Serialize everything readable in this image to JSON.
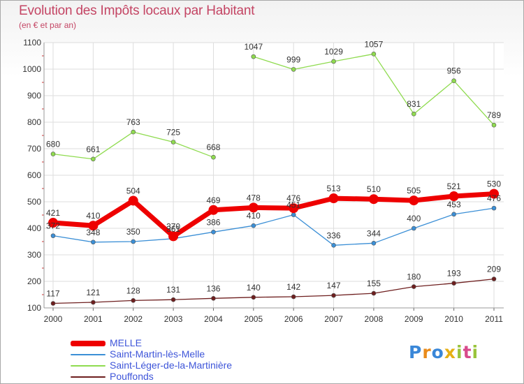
{
  "header": {
    "title": "Evolution des Impôts locaux par Habitant",
    "subtitle": "(en € et par an)"
  },
  "chart_data": {
    "type": "line",
    "x": [
      "2000",
      "2001",
      "2002",
      "2003",
      "2004",
      "2005",
      "2006",
      "2007",
      "2008",
      "2009",
      "2010",
      "2011"
    ],
    "ylim": [
      100,
      1100
    ],
    "yticks": [
      100,
      200,
      300,
      400,
      500,
      600,
      700,
      800,
      900,
      1000,
      1100
    ],
    "grid": true,
    "legend_position": "bottom-left",
    "series": [
      {
        "name": "MELLE",
        "color": "#ee0000",
        "values": [
          421,
          410,
          504,
          370,
          469,
          478,
          476,
          513,
          510,
          505,
          521,
          530
        ]
      },
      {
        "name": "Saint-Martin-lès-Melle",
        "color": "#3b8fd6",
        "values": [
          372,
          348,
          350,
          361,
          386,
          410,
          451,
          336,
          344,
          400,
          453,
          476
        ]
      },
      {
        "name": "Saint-Léger-de-la-Martinière",
        "color": "#8fdb4f",
        "values": [
          680,
          661,
          763,
          725,
          668,
          1047,
          999,
          1029,
          1057,
          831,
          956,
          789
        ]
      },
      {
        "name": "Pouffonds",
        "color": "#6e1f1f",
        "values": [
          117,
          121,
          128,
          131,
          136,
          140,
          142,
          147,
          155,
          180,
          193,
          209
        ]
      }
    ]
  },
  "logo": {
    "letters": [
      "P",
      "r",
      "o",
      "x",
      "i",
      "t",
      "i"
    ]
  }
}
